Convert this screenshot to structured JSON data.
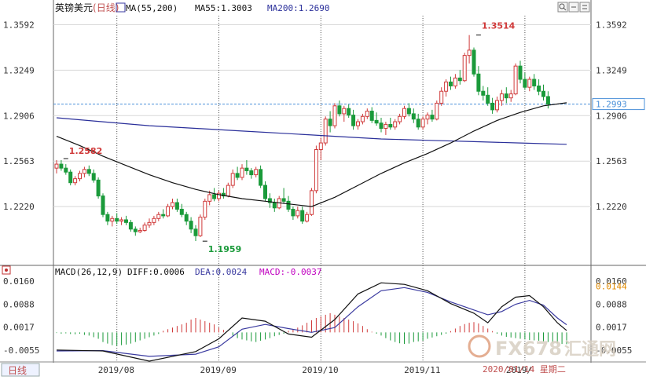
{
  "colors": {
    "up": "#d03a3a",
    "down": "#1a9a3a",
    "ma55": "#111111",
    "ma200": "#2a2f9a",
    "diff": "#111111",
    "dea": "#3a3aa0",
    "last_line": "#4a90d9",
    "grid": "#666666",
    "axis_text": "#333333",
    "macd_label": "#c000c0",
    "watermark": "#d8cfc2"
  },
  "header": {
    "symbol": "英镑美元",
    "period": "(日线)",
    "ma_params": "MA(55,200)",
    "ma55_label": "MA55:1.3003",
    "ma200_label": "MA200:1.2690"
  },
  "macd_header": {
    "title": "MACD(26,12,9)",
    "diff": "DIFF:0.0006",
    "dea": "DEA:0.0024",
    "macd": "MACD:-0.0037"
  },
  "footer": {
    "period_tab": "日线",
    "date_status": "2020/01/14 星期二"
  },
  "watermark": {
    "brand": "FX678",
    "cn": "汇通网"
  },
  "icons": [
    "search-icon",
    "zoom-out-icon",
    "settings-icon",
    "restore-icon",
    "close-icon"
  ],
  "chart_data": [
    {
      "type": "candlestick",
      "title": "英镑美元(日线)",
      "y_ticks": [
        "1.3592",
        "1.3249",
        "1.2906",
        "1.2563",
        "1.2220"
      ],
      "ylim": [
        1.18,
        1.366
      ],
      "x_ticks": [
        "2019/08",
        "2019/09",
        "2019/10",
        "2019/11",
        "2019/"
      ],
      "last_price": "1.2993",
      "annotations": [
        {
          "text": "1.2582",
          "value": 1.2582
        },
        {
          "text": "1.1959",
          "value": 1.1959
        },
        {
          "text": "1.3514",
          "value": 1.3514
        }
      ],
      "candles": [
        [
          1.251,
          1.257,
          1.247,
          1.254
        ],
        [
          1.254,
          1.257,
          1.249,
          1.251
        ],
        [
          1.251,
          1.254,
          1.246,
          1.248
        ],
        [
          1.248,
          1.25,
          1.238,
          1.24
        ],
        [
          1.24,
          1.245,
          1.238,
          1.243
        ],
        [
          1.243,
          1.249,
          1.241,
          1.247
        ],
        [
          1.247,
          1.252,
          1.244,
          1.25
        ],
        [
          1.25,
          1.253,
          1.245,
          1.247
        ],
        [
          1.247,
          1.25,
          1.24,
          1.242
        ],
        [
          1.242,
          1.244,
          1.228,
          1.23
        ],
        [
          1.23,
          1.232,
          1.214,
          1.216
        ],
        [
          1.216,
          1.218,
          1.208,
          1.211
        ],
        [
          1.211,
          1.215,
          1.207,
          1.213
        ],
        [
          1.213,
          1.217,
          1.209,
          1.211
        ],
        [
          1.211,
          1.214,
          1.208,
          1.212
        ],
        [
          1.212,
          1.215,
          1.208,
          1.21
        ],
        [
          1.21,
          1.212,
          1.203,
          1.205
        ],
        [
          1.205,
          1.207,
          1.2,
          1.203
        ],
        [
          1.203,
          1.206,
          1.202,
          1.204
        ],
        [
          1.204,
          1.21,
          1.203,
          1.208
        ],
        [
          1.208,
          1.213,
          1.206,
          1.21
        ],
        [
          1.21,
          1.215,
          1.208,
          1.213
        ],
        [
          1.213,
          1.218,
          1.211,
          1.216
        ],
        [
          1.216,
          1.22,
          1.213,
          1.215
        ],
        [
          1.215,
          1.224,
          1.214,
          1.222
        ],
        [
          1.222,
          1.228,
          1.22,
          1.225
        ],
        [
          1.225,
          1.228,
          1.218,
          1.22
        ],
        [
          1.22,
          1.224,
          1.214,
          1.216
        ],
        [
          1.216,
          1.218,
          1.208,
          1.211
        ],
        [
          1.211,
          1.214,
          1.202,
          1.205
        ],
        [
          1.205,
          1.208,
          1.196,
          1.2
        ],
        [
          1.2,
          1.216,
          1.199,
          1.214
        ],
        [
          1.214,
          1.228,
          1.212,
          1.226
        ],
        [
          1.226,
          1.234,
          1.223,
          1.231
        ],
        [
          1.231,
          1.236,
          1.226,
          1.228
        ],
        [
          1.228,
          1.234,
          1.226,
          1.232
        ],
        [
          1.232,
          1.236,
          1.228,
          1.23
        ],
        [
          1.23,
          1.24,
          1.229,
          1.238
        ],
        [
          1.238,
          1.25,
          1.236,
          1.247
        ],
        [
          1.247,
          1.252,
          1.242,
          1.244
        ],
        [
          1.244,
          1.254,
          1.242,
          1.251
        ],
        [
          1.251,
          1.257,
          1.246,
          1.249
        ],
        [
          1.249,
          1.251,
          1.243,
          1.246
        ],
        [
          1.246,
          1.252,
          1.244,
          1.25
        ],
        [
          1.25,
          1.253,
          1.236,
          1.238
        ],
        [
          1.238,
          1.241,
          1.226,
          1.228
        ],
        [
          1.228,
          1.232,
          1.221,
          1.225
        ],
        [
          1.225,
          1.228,
          1.218,
          1.221
        ],
        [
          1.221,
          1.23,
          1.22,
          1.228
        ],
        [
          1.228,
          1.236,
          1.224,
          1.226
        ],
        [
          1.226,
          1.23,
          1.218,
          1.22
        ],
        [
          1.22,
          1.222,
          1.212,
          1.215
        ],
        [
          1.215,
          1.222,
          1.213,
          1.219
        ],
        [
          1.219,
          1.222,
          1.209,
          1.211
        ],
        [
          1.211,
          1.218,
          1.21,
          1.216
        ],
        [
          1.216,
          1.236,
          1.215,
          1.234
        ],
        [
          1.234,
          1.268,
          1.232,
          1.265
        ],
        [
          1.265,
          1.274,
          1.257,
          1.27
        ],
        [
          1.27,
          1.29,
          1.268,
          1.288
        ],
        [
          1.288,
          1.294,
          1.278,
          1.283
        ],
        [
          1.283,
          1.3,
          1.281,
          1.298
        ],
        [
          1.298,
          1.302,
          1.29,
          1.292
        ],
        [
          1.292,
          1.298,
          1.286,
          1.296
        ],
        [
          1.296,
          1.299,
          1.289,
          1.291
        ],
        [
          1.291,
          1.295,
          1.28,
          1.283
        ],
        [
          1.283,
          1.288,
          1.28,
          1.286
        ],
        [
          1.286,
          1.292,
          1.284,
          1.29
        ],
        [
          1.29,
          1.296,
          1.288,
          1.294
        ],
        [
          1.294,
          1.297,
          1.285,
          1.287
        ],
        [
          1.287,
          1.293,
          1.283,
          1.285
        ],
        [
          1.285,
          1.289,
          1.278,
          1.281
        ],
        [
          1.281,
          1.286,
          1.276,
          1.284
        ],
        [
          1.284,
          1.289,
          1.28,
          1.282
        ],
        [
          1.282,
          1.288,
          1.28,
          1.286
        ],
        [
          1.286,
          1.292,
          1.284,
          1.29
        ],
        [
          1.29,
          1.298,
          1.288,
          1.296
        ],
        [
          1.296,
          1.3,
          1.29,
          1.292
        ],
        [
          1.292,
          1.296,
          1.285,
          1.288
        ],
        [
          1.288,
          1.292,
          1.28,
          1.282
        ],
        [
          1.282,
          1.29,
          1.28,
          1.288
        ],
        [
          1.288,
          1.293,
          1.284,
          1.291
        ],
        [
          1.291,
          1.295,
          1.286,
          1.288
        ],
        [
          1.288,
          1.302,
          1.287,
          1.3
        ],
        [
          1.3,
          1.312,
          1.298,
          1.309
        ],
        [
          1.309,
          1.318,
          1.305,
          1.316
        ],
        [
          1.316,
          1.32,
          1.31,
          1.313
        ],
        [
          1.313,
          1.322,
          1.311,
          1.319
        ],
        [
          1.319,
          1.325,
          1.314,
          1.317
        ],
        [
          1.317,
          1.338,
          1.316,
          1.336
        ],
        [
          1.336,
          1.3514,
          1.33,
          1.34
        ],
        [
          1.34,
          1.342,
          1.32,
          1.322
        ],
        [
          1.322,
          1.328,
          1.306,
          1.309
        ],
        [
          1.309,
          1.313,
          1.302,
          1.306
        ],
        [
          1.306,
          1.312,
          1.298,
          1.3
        ],
        [
          1.3,
          1.304,
          1.292,
          1.295
        ],
        [
          1.295,
          1.305,
          1.293,
          1.302
        ],
        [
          1.302,
          1.31,
          1.298,
          1.307
        ],
        [
          1.307,
          1.312,
          1.3,
          1.304
        ],
        [
          1.304,
          1.31,
          1.301,
          1.307
        ],
        [
          1.307,
          1.33,
          1.306,
          1.328
        ],
        [
          1.328,
          1.332,
          1.315,
          1.318
        ],
        [
          1.318,
          1.323,
          1.31,
          1.312
        ],
        [
          1.312,
          1.32,
          1.309,
          1.318
        ],
        [
          1.318,
          1.322,
          1.31,
          1.313
        ],
        [
          1.313,
          1.318,
          1.306,
          1.309
        ],
        [
          1.309,
          1.314,
          1.302,
          1.305
        ],
        [
          1.305,
          1.309,
          1.296,
          1.2993
        ]
      ],
      "ma55": [
        [
          0,
          1.275
        ],
        [
          5,
          1.268
        ],
        [
          10,
          1.26
        ],
        [
          15,
          1.253
        ],
        [
          20,
          1.246
        ],
        [
          25,
          1.24
        ],
        [
          30,
          1.235
        ],
        [
          35,
          1.231
        ],
        [
          40,
          1.228
        ],
        [
          45,
          1.226
        ],
        [
          50,
          1.224
        ],
        [
          55,
          1.222
        ],
        [
          60,
          1.229
        ],
        [
          65,
          1.238
        ],
        [
          70,
          1.247
        ],
        [
          75,
          1.255
        ],
        [
          80,
          1.262
        ],
        [
          85,
          1.27
        ],
        [
          90,
          1.279
        ],
        [
          95,
          1.287
        ],
        [
          100,
          1.293
        ],
        [
          105,
          1.298
        ],
        [
          110,
          1.3003
        ]
      ],
      "ma200": [
        [
          0,
          1.289
        ],
        [
          10,
          1.286
        ],
        [
          20,
          1.283
        ],
        [
          30,
          1.281
        ],
        [
          40,
          1.279
        ],
        [
          50,
          1.277
        ],
        [
          55,
          1.276
        ],
        [
          60,
          1.275
        ],
        [
          70,
          1.273
        ],
        [
          80,
          1.272
        ],
        [
          90,
          1.271
        ],
        [
          100,
          1.27
        ],
        [
          110,
          1.269
        ]
      ]
    },
    {
      "type": "macd",
      "title": "MACD(26,12,9)",
      "y_ticks": [
        "0.0160",
        "0.0088",
        "0.0017",
        "-0.0055"
      ],
      "ylim": [
        -0.0085,
        0.0175
      ],
      "right_value": "0.0144",
      "diff": [
        [
          0,
          -0.0055
        ],
        [
          10,
          -0.0058
        ],
        [
          20,
          -0.009
        ],
        [
          30,
          -0.006
        ],
        [
          35,
          -0.002
        ],
        [
          40,
          0.0045
        ],
        [
          45,
          0.0035
        ],
        [
          50,
          -0.0005
        ],
        [
          55,
          -0.0015
        ],
        [
          60,
          0.004
        ],
        [
          65,
          0.012
        ],
        [
          70,
          0.0155
        ],
        [
          75,
          0.015
        ],
        [
          80,
          0.013
        ],
        [
          85,
          0.009
        ],
        [
          90,
          0.006
        ],
        [
          93,
          0.003
        ],
        [
          96,
          0.008
        ],
        [
          99,
          0.011
        ],
        [
          102,
          0.0115
        ],
        [
          105,
          0.008
        ],
        [
          108,
          0.003
        ],
        [
          110,
          0.0006
        ]
      ],
      "dea": [
        [
          0,
          -0.0058
        ],
        [
          10,
          -0.0057
        ],
        [
          20,
          -0.0075
        ],
        [
          30,
          -0.0068
        ],
        [
          35,
          -0.0045
        ],
        [
          40,
          0.001
        ],
        [
          45,
          0.0025
        ],
        [
          50,
          0.0012
        ],
        [
          55,
          0.0
        ],
        [
          60,
          0.0015
        ],
        [
          65,
          0.008
        ],
        [
          70,
          0.013
        ],
        [
          75,
          0.014
        ],
        [
          80,
          0.0125
        ],
        [
          85,
          0.0095
        ],
        [
          90,
          0.007
        ],
        [
          93,
          0.0055
        ],
        [
          96,
          0.0065
        ],
        [
          99,
          0.0088
        ],
        [
          102,
          0.01
        ],
        [
          105,
          0.0085
        ],
        [
          108,
          0.0045
        ],
        [
          110,
          0.0024
        ]
      ],
      "histogram": [
        -0.0002,
        -0.0004,
        -0.0003,
        -0.0005,
        -0.0006,
        -0.0004,
        -0.0008,
        -0.001,
        -0.0015,
        -0.002,
        -0.003,
        -0.0035,
        -0.004,
        -0.0042,
        -0.004,
        -0.0038,
        -0.0035,
        -0.003,
        -0.0025,
        -0.002,
        -0.0015,
        -0.001,
        -0.0005,
        0.0005,
        0.001,
        0.0015,
        0.002,
        0.0025,
        0.003,
        0.004,
        0.0045,
        0.004,
        0.0035,
        0.003,
        0.0025,
        0.0015,
        0.0008,
        0.0,
        -0.001,
        -0.0018,
        -0.0022,
        -0.0025,
        -0.0028,
        -0.003,
        -0.0026,
        -0.0022,
        -0.0018,
        -0.0012,
        -0.0008,
        -0.0004,
        0.0005,
        0.001,
        0.0015,
        0.0022,
        0.003,
        0.0038,
        0.0045,
        0.005,
        0.0055,
        0.006,
        0.0055,
        0.005,
        0.0045,
        0.004,
        0.0035,
        0.0028,
        0.002,
        0.001,
        0.0002,
        -0.0004,
        -0.001,
        -0.0018,
        -0.0025,
        -0.003,
        -0.0034,
        -0.0036,
        -0.0035,
        -0.003,
        -0.0028,
        -0.0026,
        -0.002,
        -0.0016,
        -0.0012,
        -0.0008,
        -0.0004,
        0.0004,
        0.0012,
        0.002,
        0.0026,
        0.003,
        0.0032,
        0.0028,
        0.002,
        0.0012,
        0.0004,
        -0.0004,
        -0.001,
        -0.0014,
        -0.0016,
        -0.0018,
        -0.002,
        -0.0022,
        -0.0024,
        -0.0025,
        -0.0026,
        -0.0028,
        -0.003,
        -0.0032,
        -0.0034,
        -0.0036,
        -0.0037
      ]
    }
  ]
}
